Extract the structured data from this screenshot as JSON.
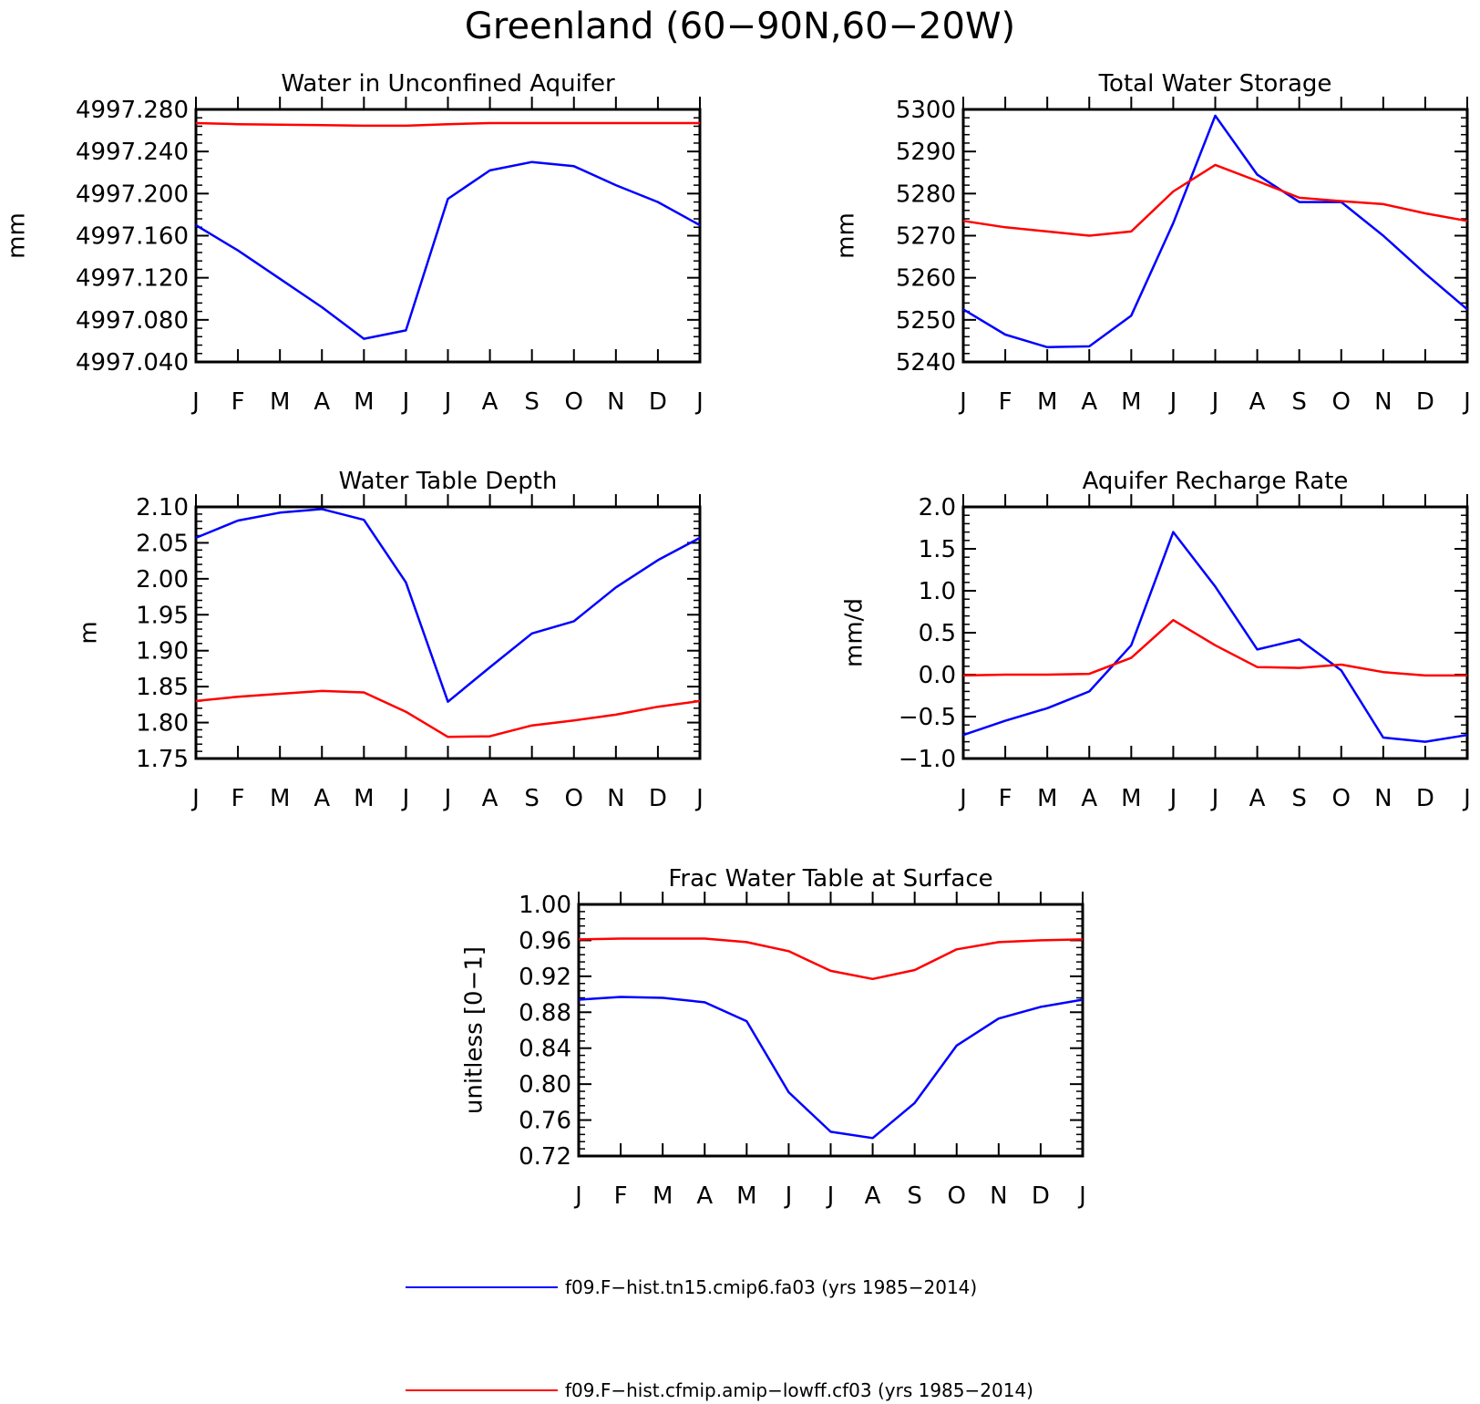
{
  "figure": {
    "title": "Greenland (60−90N,60−20W)"
  },
  "colors": {
    "series_blue": "#0000ff",
    "series_red": "#ff0000",
    "axis": "#000000"
  },
  "legend": {
    "entries": [
      {
        "label": "f09.F−hist.tn15.cmip6.fa03 (yrs 1985−2014)",
        "color": "#0000ff"
      },
      {
        "label": "f09.F−hist.cfmip.amip−lowff.cf03 (yrs 1985−2014)",
        "color": "#ff0000"
      }
    ]
  },
  "chart_data": [
    {
      "type": "line",
      "title": "Water in Unconfined Aquifer",
      "xlabel": "",
      "ylabel": "mm",
      "categories": [
        "J",
        "F",
        "M",
        "A",
        "M",
        "J",
        "J",
        "A",
        "S",
        "O",
        "N",
        "D",
        "J"
      ],
      "ylim": [
        4997.04,
        4997.28
      ],
      "yticks": [
        "4997.040",
        "4997.080",
        "4997.120",
        "4997.160",
        "4997.200",
        "4997.240",
        "4997.280"
      ],
      "grid": false,
      "series": [
        {
          "color": "#0000ff",
          "values": [
            4997.17,
            4997.146,
            4997.119,
            4997.092,
            4997.062,
            4997.07,
            4997.195,
            4997.222,
            4997.23,
            4997.226,
            4997.208,
            4997.192,
            4997.17
          ]
        },
        {
          "color": "#ff0000",
          "values": [
            4997.267,
            4997.266,
            4997.2655,
            4997.265,
            4997.2645,
            4997.2645,
            4997.266,
            4997.267,
            4997.267,
            4997.267,
            4997.267,
            4997.267,
            4997.267
          ]
        }
      ]
    },
    {
      "type": "line",
      "title": "Total Water Storage",
      "xlabel": "",
      "ylabel": "mm",
      "categories": [
        "J",
        "F",
        "M",
        "A",
        "M",
        "J",
        "J",
        "A",
        "S",
        "O",
        "N",
        "D",
        "J"
      ],
      "ylim": [
        5240,
        5300
      ],
      "yticks": [
        "5240",
        "5250",
        "5260",
        "5270",
        "5280",
        "5290",
        "5300"
      ],
      "grid": false,
      "series": [
        {
          "color": "#0000ff",
          "values": [
            5252.5,
            5246.5,
            5243.5,
            5243.7,
            5251.0,
            5273.0,
            5298.5,
            5284.5,
            5278.0,
            5278.0,
            5270.0,
            5261.0,
            5252.5
          ]
        },
        {
          "color": "#ff0000",
          "values": [
            5273.5,
            5272.0,
            5271.0,
            5270.0,
            5271.0,
            5280.5,
            5286.8,
            5283.0,
            5279.0,
            5278.2,
            5277.5,
            5275.3,
            5273.5
          ]
        }
      ]
    },
    {
      "type": "line",
      "title": "Water Table Depth",
      "xlabel": "",
      "ylabel": "m",
      "categories": [
        "J",
        "F",
        "M",
        "A",
        "M",
        "J",
        "J",
        "A",
        "S",
        "O",
        "N",
        "D",
        "J"
      ],
      "ylim": [
        1.75,
        2.1
      ],
      "yticks": [
        "1.75",
        "1.80",
        "1.85",
        "1.90",
        "1.95",
        "2.00",
        "2.05",
        "2.10"
      ],
      "grid": false,
      "series": [
        {
          "color": "#0000ff",
          "values": [
            2.057,
            2.081,
            2.092,
            2.097,
            2.082,
            1.995,
            1.829,
            1.877,
            1.924,
            1.941,
            1.988,
            2.026,
            2.057
          ]
        },
        {
          "color": "#ff0000",
          "values": [
            1.83,
            1.836,
            1.84,
            1.844,
            1.842,
            1.815,
            1.78,
            1.781,
            1.796,
            1.803,
            1.811,
            1.822,
            1.83
          ]
        }
      ]
    },
    {
      "type": "line",
      "title": "Aquifer Recharge Rate",
      "xlabel": "",
      "ylabel": "mm/d",
      "categories": [
        "J",
        "F",
        "M",
        "A",
        "M",
        "J",
        "J",
        "A",
        "S",
        "O",
        "N",
        "D",
        "J"
      ],
      "ylim": [
        -1.0,
        2.0
      ],
      "yticks": [
        "−1.0",
        "−0.5",
        "0.0",
        "0.5",
        "1.0",
        "1.5",
        "2.0"
      ],
      "grid": false,
      "series": [
        {
          "color": "#0000ff",
          "values": [
            -0.72,
            -0.55,
            -0.4,
            -0.2,
            0.35,
            1.7,
            1.05,
            0.3,
            0.42,
            0.05,
            -0.75,
            -0.8,
            -0.72
          ]
        },
        {
          "color": "#ff0000",
          "values": [
            -0.01,
            0.0,
            0.0,
            0.01,
            0.2,
            0.65,
            0.35,
            0.09,
            0.08,
            0.12,
            0.03,
            -0.01,
            -0.01
          ]
        }
      ]
    },
    {
      "type": "line",
      "title": "Frac Water Table at Surface",
      "xlabel": "",
      "ylabel": "unitless [0−1]",
      "categories": [
        "J",
        "F",
        "M",
        "A",
        "M",
        "J",
        "J",
        "A",
        "S",
        "O",
        "N",
        "D",
        "J"
      ],
      "ylim": [
        0.72,
        1.0
      ],
      "yticks": [
        "0.72",
        "0.76",
        "0.80",
        "0.84",
        "0.88",
        "0.92",
        "0.96",
        "1.00"
      ],
      "grid": false,
      "series": [
        {
          "color": "#0000ff",
          "values": [
            0.894,
            0.897,
            0.896,
            0.891,
            0.87,
            0.791,
            0.747,
            0.74,
            0.779,
            0.843,
            0.873,
            0.886,
            0.894
          ]
        },
        {
          "color": "#ff0000",
          "values": [
            0.961,
            0.962,
            0.962,
            0.962,
            0.958,
            0.948,
            0.926,
            0.917,
            0.927,
            0.95,
            0.958,
            0.96,
            0.961
          ]
        }
      ]
    }
  ]
}
